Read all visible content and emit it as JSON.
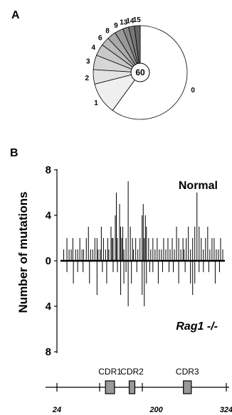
{
  "panel_a_label": "A",
  "panel_b_label": "B",
  "chart_data": [
    {
      "type": "pie",
      "center_label": "60",
      "slices": [
        {
          "label": "0",
          "value": 60,
          "color": "#ffffff"
        },
        {
          "label": "1",
          "value": 11,
          "color": "#efefef"
        },
        {
          "label": "2",
          "value": 5,
          "color": "#e3e3e3"
        },
        {
          "label": "3",
          "value": 5,
          "color": "#d6d6d6"
        },
        {
          "label": "4",
          "value": 4,
          "color": "#c8c8c8"
        },
        {
          "label": "6",
          "value": 3,
          "color": "#bababa"
        },
        {
          "label": "8",
          "value": 3,
          "color": "#aaaaaa"
        },
        {
          "label": "9",
          "value": 3,
          "color": "#999999"
        },
        {
          "label": "13",
          "value": 2,
          "color": "#888888"
        },
        {
          "label": "14",
          "value": 2,
          "color": "#777777"
        },
        {
          "label": "15",
          "value": 2,
          "color": "#666666"
        }
      ]
    },
    {
      "type": "bar",
      "ylabel": "Number of mutations",
      "y_tick_labels": [
        "8",
        "4",
        "0",
        "4",
        "8"
      ],
      "ylim": [
        -8,
        8
      ],
      "xlim": [
        24,
        330
      ],
      "x_tick_labels": [
        "24",
        "200",
        "324"
      ],
      "series": [
        {
          "name": "Normal",
          "direction": "up",
          "positions": [
            30,
            36,
            40,
            44,
            47,
            52,
            56,
            60,
            64,
            67,
            72,
            76,
            80,
            84,
            88,
            92,
            94,
            98,
            100,
            104,
            108,
            112,
            114,
            118,
            120,
            122,
            126,
            128,
            130,
            134,
            136,
            138,
            140,
            142,
            146,
            150,
            154,
            158,
            160,
            164,
            168,
            172,
            176,
            178,
            180,
            182,
            184,
            188,
            192,
            196,
            200,
            204,
            208,
            212,
            216,
            220,
            224,
            228,
            232,
            236,
            240,
            244,
            248,
            252,
            254,
            258,
            262,
            266,
            270,
            274,
            278,
            282,
            286,
            290,
            294,
            298,
            302,
            306,
            310,
            314,
            318,
            322,
            326
          ],
          "values": [
            1,
            2,
            1,
            1,
            2,
            1,
            1,
            2,
            1,
            1,
            2,
            3,
            1,
            1,
            2,
            2,
            1,
            1,
            3,
            2,
            1,
            2,
            1,
            3,
            2,
            2,
            4,
            6,
            2,
            5,
            3,
            2,
            3,
            1,
            2,
            7,
            3,
            2,
            1,
            2,
            1,
            2,
            4,
            5,
            2,
            4,
            3,
            2,
            1,
            2,
            1,
            2,
            1,
            1,
            2,
            1,
            2,
            1,
            2,
            1,
            3,
            2,
            1,
            2,
            1,
            2,
            3,
            1,
            2,
            3,
            6,
            3,
            2,
            1,
            2,
            3,
            1,
            2,
            2,
            1,
            1,
            2,
            1
          ]
        },
        {
          "name": "Rag1 -/-",
          "direction": "down",
          "positions": [
            36,
            48,
            56,
            66,
            78,
            92,
            102,
            110,
            122,
            130,
            136,
            142,
            146,
            150,
            156,
            166,
            176,
            180,
            184,
            190,
            196,
            206,
            214,
            226,
            234,
            244,
            256,
            266,
            270,
            274,
            282,
            290,
            300,
            312,
            320
          ],
          "values": [
            1,
            2,
            1,
            1,
            2,
            3,
            1,
            2,
            1,
            1,
            3,
            2,
            1,
            4,
            2,
            1,
            3,
            4,
            2,
            1,
            1,
            2,
            1,
            1,
            1,
            2,
            1,
            2,
            3,
            2,
            1,
            1,
            1,
            2,
            1
          ]
        }
      ],
      "regions": [
        {
          "label": "CDR1",
          "start": 110,
          "end": 126
        },
        {
          "label": "CDR2",
          "start": 152,
          "end": 162
        },
        {
          "label": "CDR3",
          "start": 248,
          "end": 262
        }
      ]
    }
  ]
}
